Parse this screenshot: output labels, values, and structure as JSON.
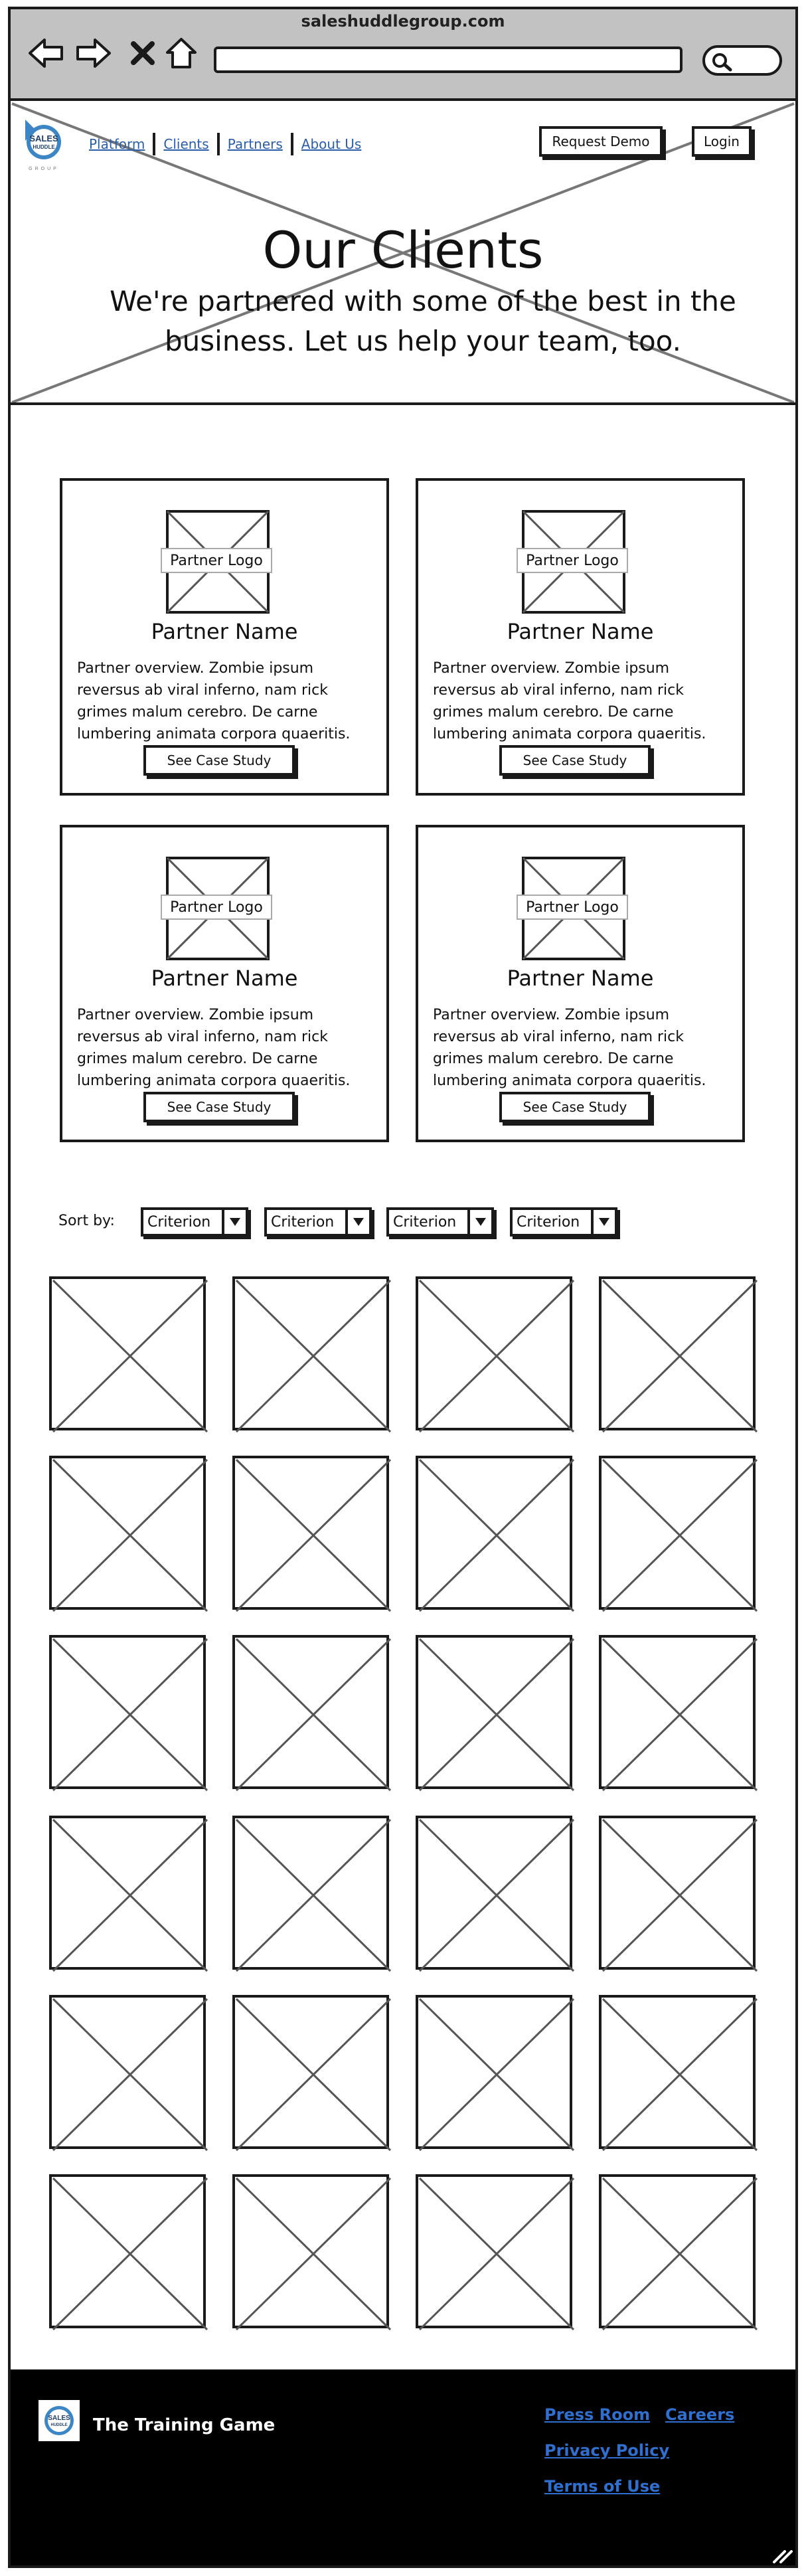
{
  "browser": {
    "url_title": "saleshuddlegroup.com"
  },
  "logo": {
    "line1": "SALES",
    "line2": "HUDDLE",
    "line3": "GROUP"
  },
  "nav": {
    "items": [
      "Platform",
      "Clients",
      "Partners",
      "About Us"
    ],
    "request_demo": "Request Demo",
    "login": "Login"
  },
  "hero": {
    "title": "Our Clients",
    "subtitle": "We're partnered with some of the best in the business. Let us help your team, too."
  },
  "cards": [
    {
      "logo_label": "Partner Logo",
      "name": "Partner Name",
      "description": "Partner overview. Zombie ipsum reversus ab viral inferno, nam rick grimes malum cerebro. De carne lumbering animata corpora quaeritis.",
      "cta": "See Case Study"
    },
    {
      "logo_label": "Partner Logo",
      "name": "Partner Name",
      "description": "Partner overview. Zombie ipsum reversus ab viral inferno, nam rick grimes malum cerebro. De carne lumbering animata corpora quaeritis.",
      "cta": "See Case Study"
    },
    {
      "logo_label": "Partner Logo",
      "name": "Partner Name",
      "description": "Partner overview. Zombie ipsum reversus ab viral inferno, nam rick grimes malum cerebro. De carne lumbering animata corpora quaeritis.",
      "cta": "See Case Study"
    },
    {
      "logo_label": "Partner Logo",
      "name": "Partner Name",
      "description": "Partner overview. Zombie ipsum reversus ab viral inferno, nam rick grimes malum cerebro. De carne lumbering animata corpora quaeritis.",
      "cta": "See Case Study"
    }
  ],
  "sort": {
    "label": "Sort by:",
    "criteria": [
      "Criterion",
      "Criterion",
      "Criterion",
      "Criterion"
    ]
  },
  "footer": {
    "brand": "The Training Game",
    "links": [
      "Press Room",
      "Careers",
      "Privacy Policy",
      "Terms of Use"
    ],
    "link_color": "#2f6fd0"
  },
  "colors": {
    "chrome": "#c2c2c2",
    "link": "#2b5da8",
    "logo_blue": "#3c86c6"
  }
}
